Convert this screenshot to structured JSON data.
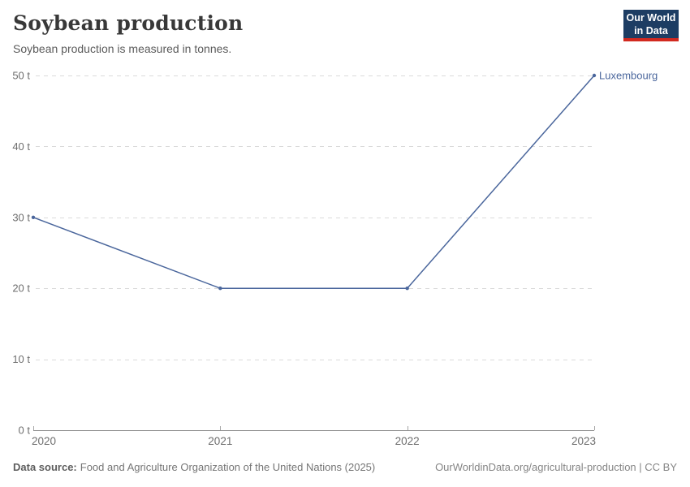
{
  "header": {
    "title": "Soybean production",
    "subtitle": "Soybean production is measured in tonnes."
  },
  "logo": {
    "line1": "Our World",
    "line2": "in Data",
    "bg_color": "#1d3d63",
    "bar_color": "#d2291f"
  },
  "chart_data": {
    "type": "line",
    "title": "Soybean production",
    "subtitle": "Soybean production is measured in tonnes.",
    "x": [
      2020,
      2021,
      2022,
      2023
    ],
    "xtick_labels": [
      "2020",
      "2021",
      "2022",
      "2023"
    ],
    "series": [
      {
        "name": "Luxembourg",
        "values": [
          30,
          20,
          20,
          50
        ],
        "color": "#4a669c"
      }
    ],
    "ylim": [
      0,
      50
    ],
    "yticks": [
      0,
      10,
      20,
      30,
      40,
      50
    ],
    "ytick_labels": [
      "0 t",
      "10 t",
      "20 t",
      "30 t",
      "40 t",
      "50 t"
    ],
    "unit": "t",
    "grid": "horizontal-dashed",
    "gridline_color": "#dadada",
    "axis_color": "#8f8f8f",
    "tick_label_color": "#6e6e6e",
    "legend": "end-of-line-label"
  },
  "footer": {
    "datasource_label": "Data source:",
    "datasource_text": "Food and Agriculture Organization of the United Nations (2025)",
    "right_text": "OurWorldinData.org/agricultural-production | CC BY"
  }
}
